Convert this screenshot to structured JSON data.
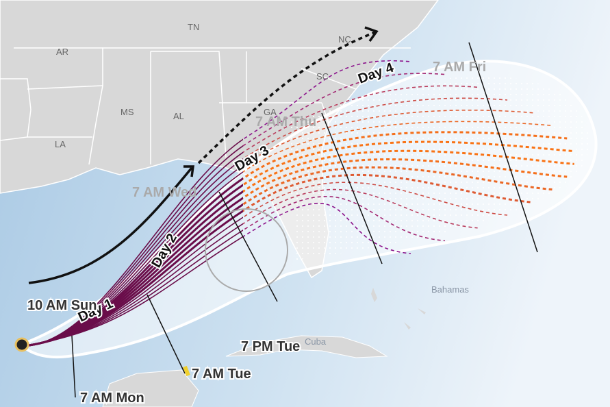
{
  "states": [
    "AR",
    "TN",
    "NC",
    "MS",
    "AL",
    "SC",
    "GA",
    "LA"
  ],
  "places": [
    "Cuba",
    "Bahamas"
  ],
  "days": [
    "Day 1",
    "Day 2",
    "Day 3",
    "Day 4"
  ],
  "times": [
    "10 AM Sun",
    "7 AM Mon",
    "7 AM Tue",
    "7 PM Tue",
    "7 AM Wed",
    "7 AM Thu",
    "7 AM Fri"
  ]
}
